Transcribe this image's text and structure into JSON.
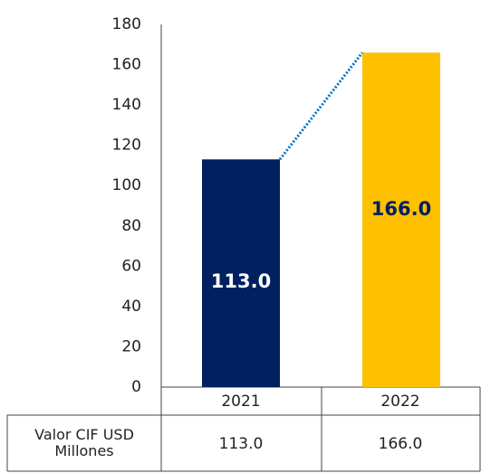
{
  "chart_data": {
    "type": "bar",
    "categories": [
      "2021",
      "2022"
    ],
    "series": [
      {
        "name": "Valor CIF USD Millones",
        "colors": [
          "#002060",
          "#ffc000"
        ],
        "label_colors": [
          "#ffffff",
          "#002060"
        ],
        "values": [
          113,
          166
        ],
        "value_labels": [
          "113.0",
          "166.0"
        ]
      }
    ],
    "connector_color": "#0070c0",
    "ylim": [
      0,
      180
    ],
    "yticks": [
      0,
      20,
      40,
      60,
      80,
      100,
      120,
      140,
      160,
      180
    ],
    "grid": false
  }
}
